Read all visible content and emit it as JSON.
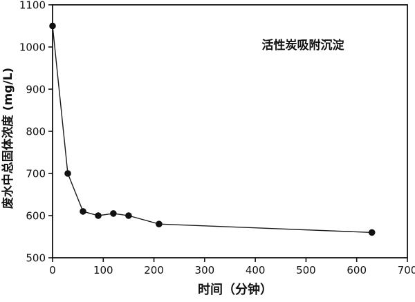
{
  "figure": {
    "background": "#ffffff",
    "foreground": "#111111"
  },
  "chart_data": {
    "type": "line",
    "title": "",
    "annotation": "活性炭吸附沉淀",
    "xlabel": "时间（分钟）",
    "ylabel": "废水中总固体浓度 (mg/L)",
    "xlim": [
      0,
      700
    ],
    "ylim": [
      500,
      1100
    ],
    "x_ticks": [
      0,
      100,
      200,
      300,
      400,
      500,
      600,
      700
    ],
    "y_ticks": [
      500,
      600,
      700,
      800,
      900,
      1000,
      1100
    ],
    "grid": false,
    "frame": "box",
    "legend_position": "none",
    "marker": "filled-circle",
    "line_color": "#1a1a1a",
    "marker_color": "#111111",
    "series": [
      {
        "name": "活性炭吸附沉淀",
        "x": [
          0,
          30,
          60,
          90,
          120,
          150,
          210,
          630
        ],
        "y": [
          1050,
          700,
          610,
          600,
          605,
          600,
          580,
          560
        ]
      }
    ]
  }
}
